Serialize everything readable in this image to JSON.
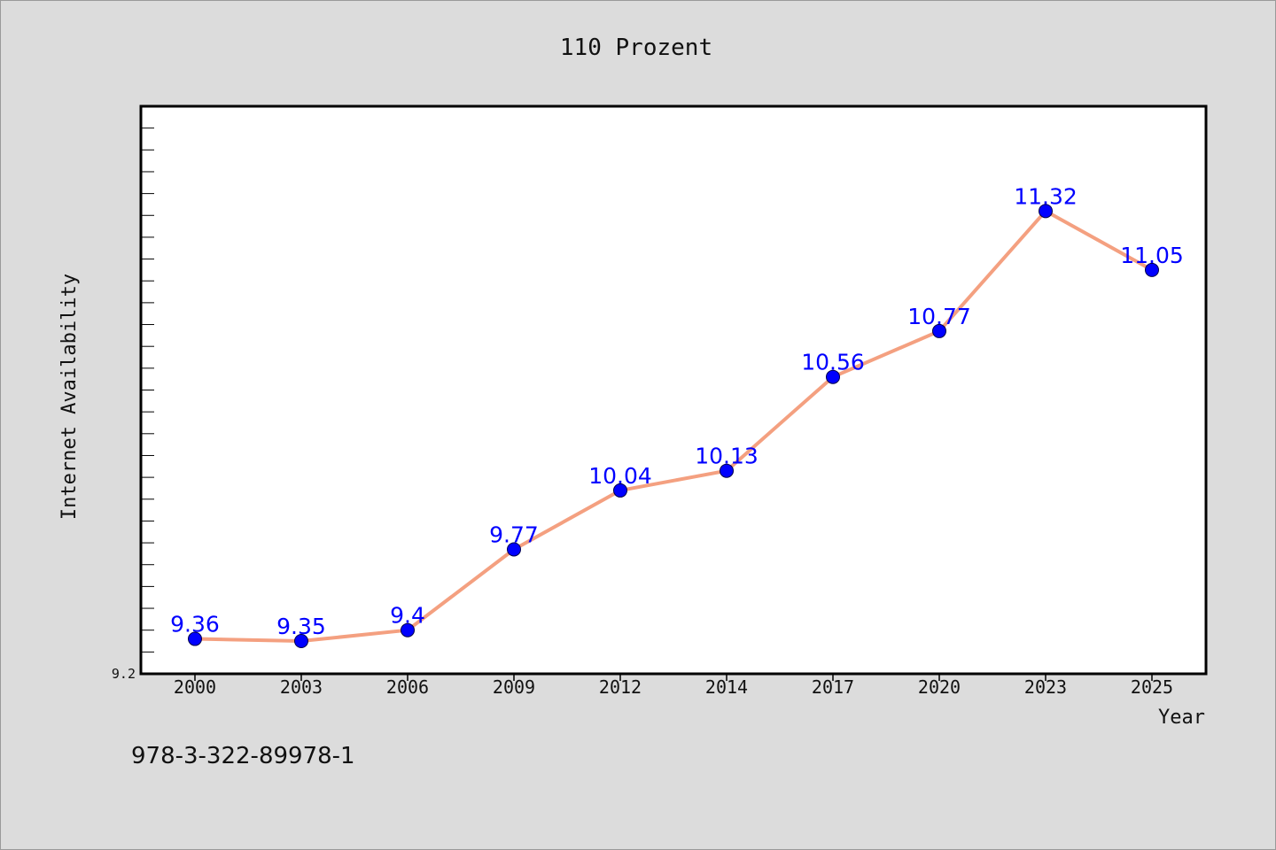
{
  "chart_data": {
    "type": "line",
    "title": "110 Prozent",
    "xlabel": "Year",
    "ylabel": "Internet Availability",
    "categories": [
      "2000",
      "2003",
      "2006",
      "2009",
      "2012",
      "2014",
      "2017",
      "2020",
      "2023",
      "2025"
    ],
    "series": [
      {
        "values": [
          9.36,
          9.35,
          9.4,
          9.77,
          10.04,
          10.13,
          10.56,
          10.77,
          11.32,
          11.05
        ],
        "labels": [
          "9.36",
          "9.35",
          "9.4",
          "9.77",
          "10.04",
          "10.13",
          "10.56",
          "10.77",
          "11.32",
          "11.05"
        ],
        "line_color": "#f4a080",
        "marker_color": "#0000ff"
      }
    ],
    "ylim": [
      9.2,
      11.8
    ],
    "y_min_label": "9.2",
    "grid": false,
    "legend": "none"
  },
  "footer": {
    "text": "978-3-322-89978-1"
  },
  "colors": {
    "background": "#dcdcdc",
    "plot_background": "#ffffff",
    "line": "#f4a080",
    "marker": "#0000ff",
    "data_label": "#0000ff"
  }
}
